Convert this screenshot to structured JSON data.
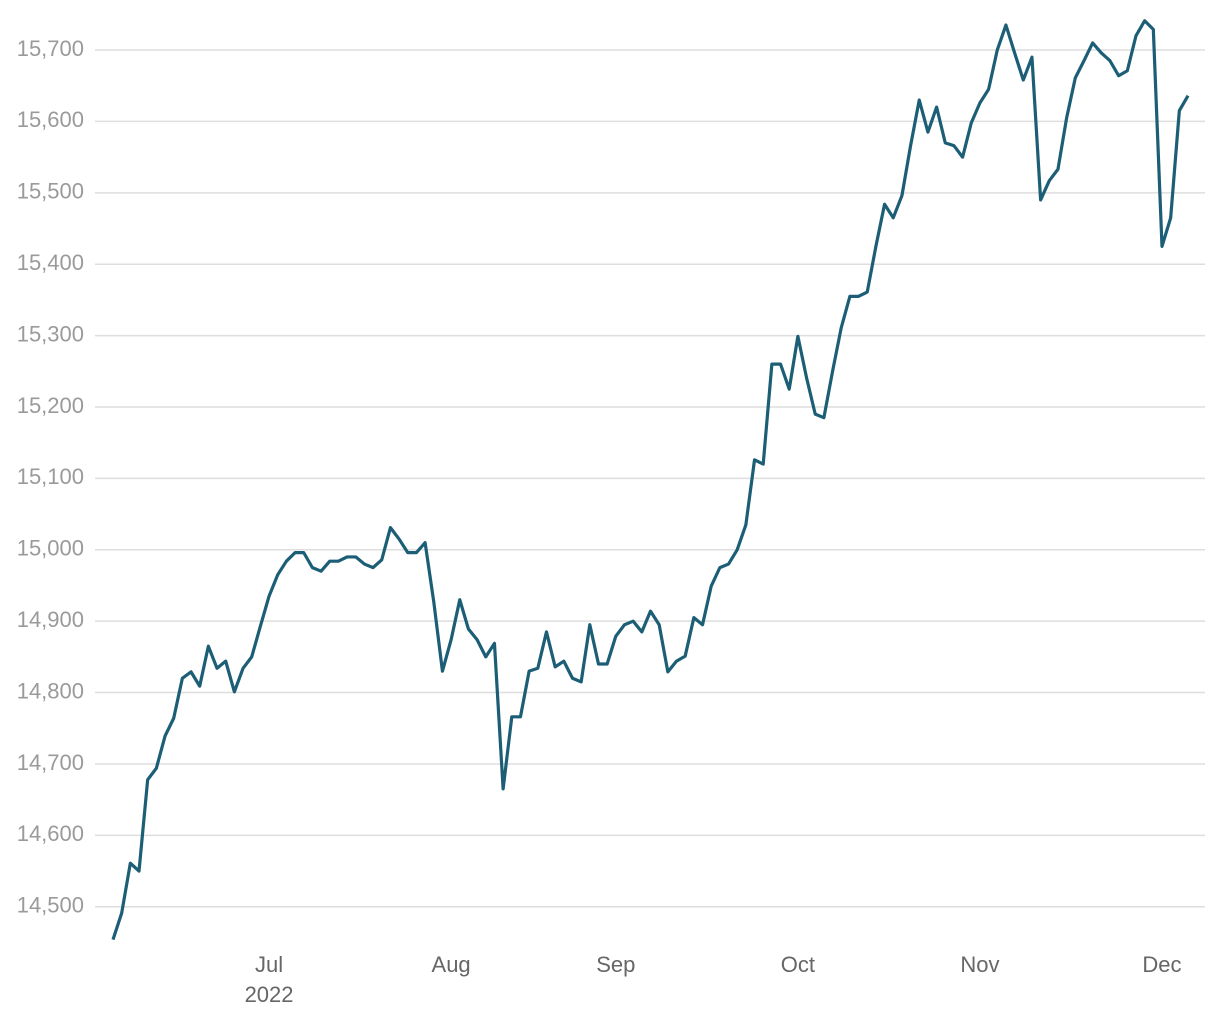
{
  "chart_data": {
    "type": "line",
    "categories": [
      null,
      null,
      null,
      null,
      null,
      null,
      null,
      null,
      null,
      null,
      null,
      null,
      null,
      null,
      null,
      null,
      null,
      null,
      "Jul",
      null,
      null,
      null,
      null,
      null,
      null,
      null,
      null,
      null,
      null,
      null,
      null,
      null,
      null,
      null,
      null,
      null,
      null,
      null,
      null,
      "Aug",
      null,
      null,
      null,
      null,
      null,
      null,
      null,
      null,
      null,
      null,
      null,
      null,
      null,
      null,
      null,
      null,
      null,
      null,
      "Sep",
      null,
      null,
      null,
      null,
      null,
      null,
      null,
      null,
      null,
      null,
      null,
      null,
      null,
      null,
      null,
      null,
      null,
      null,
      null,
      null,
      "Oct",
      null,
      null,
      null,
      null,
      null,
      null,
      null,
      null,
      null,
      null,
      null,
      null,
      null,
      null,
      null,
      null,
      null,
      null,
      null,
      null,
      "Nov",
      null,
      null,
      null,
      null,
      null,
      null,
      null,
      null,
      null,
      null,
      null,
      null,
      null,
      null,
      null,
      null,
      null,
      null,
      null,
      null,
      "Dec",
      null,
      null,
      null
    ],
    "year_label": "2022",
    "series": [
      {
        "color": "#1b5e76",
        "values": [
          14454,
          14491,
          14561,
          14550,
          14678,
          14694,
          14739,
          14764,
          14820,
          14829,
          14809,
          14865,
          14834,
          14844,
          14801,
          14834,
          14850,
          14893,
          14935,
          14965,
          14984,
          14996,
          14996,
          14975,
          14970,
          14984,
          14984,
          14990,
          14990,
          14980,
          14975,
          14986,
          15031,
          15015,
          14996,
          14996,
          15010,
          14927,
          14830,
          14874,
          14930,
          14889,
          14874,
          14850,
          14869,
          14665,
          14766,
          14766,
          14830,
          14834,
          14885,
          14836,
          14844,
          14820,
          14815,
          14895,
          14840,
          14840,
          14879,
          14895,
          14900,
          14885,
          14914,
          14895,
          14829,
          14844,
          14851,
          14905,
          14895,
          14949,
          14975,
          14980,
          15000,
          15035,
          15126,
          15120,
          15260,
          15260,
          15225,
          15299,
          15241,
          15190,
          15185,
          15250,
          15311,
          15355,
          15355,
          15361,
          15425,
          15484,
          15465,
          15496,
          15566,
          15630,
          15585,
          15620,
          15570,
          15566,
          15550,
          15598,
          15626,
          15645,
          15700,
          15735,
          15696,
          15658,
          15690,
          15490,
          15517,
          15533,
          15605,
          15661,
          15685,
          15710,
          15696,
          15685,
          15664,
          15671,
          15720,
          15741,
          15729,
          15425,
          15465,
          15615,
          15636
        ]
      }
    ],
    "ylim": [
      14445,
      15760
    ],
    "yticks": [
      {
        "value": 14500,
        "label": "14,500"
      },
      {
        "value": 14600,
        "label": "14,600"
      },
      {
        "value": 14700,
        "label": "14,700"
      },
      {
        "value": 14800,
        "label": "14,800"
      },
      {
        "value": 14900,
        "label": "14,900"
      },
      {
        "value": 15000,
        "label": "15,000"
      },
      {
        "value": 15100,
        "label": "15,100"
      },
      {
        "value": 15200,
        "label": "15,200"
      },
      {
        "value": 15300,
        "label": "15,300"
      },
      {
        "value": 15400,
        "label": "15,400"
      },
      {
        "value": 15500,
        "label": "15,500"
      },
      {
        "value": 15600,
        "label": "15,600"
      },
      {
        "value": 15700,
        "label": "15,700"
      }
    ],
    "grid": true
  }
}
